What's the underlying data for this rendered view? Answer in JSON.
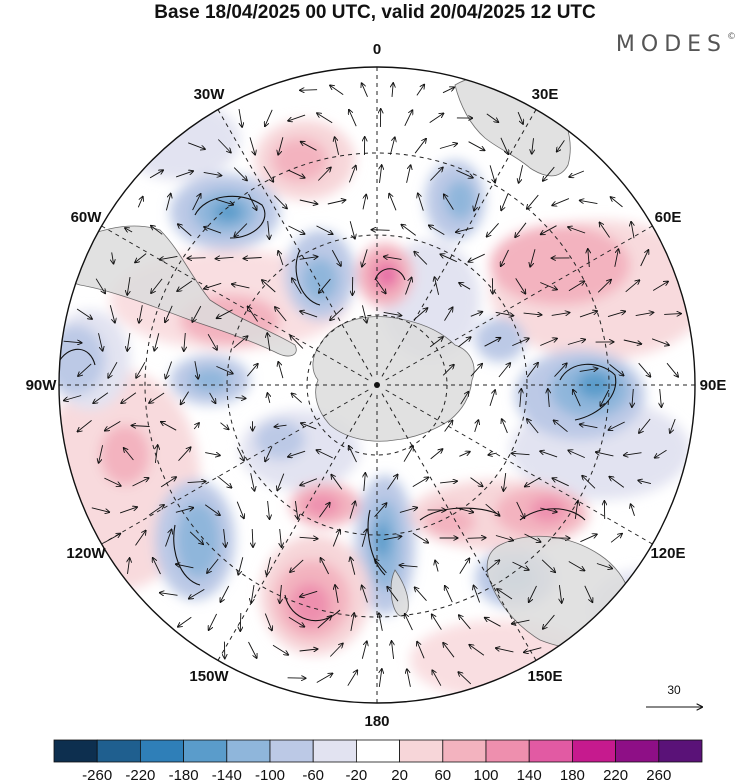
{
  "title": "Base 18/04/2025 00 UTC, valid 20/04/2025 12 UTC",
  "brand": "MODES",
  "brand_mark": "©",
  "meridian_labels": [
    {
      "text": "0",
      "lon": 0
    },
    {
      "text": "30E",
      "lon": 30
    },
    {
      "text": "60E",
      "lon": 60
    },
    {
      "text": "90E",
      "lon": 90
    },
    {
      "text": "120E",
      "lon": 120
    },
    {
      "text": "150E",
      "lon": 150
    },
    {
      "text": "180",
      "lon": 180
    },
    {
      "text": "150W",
      "lon": -150
    },
    {
      "text": "120W",
      "lon": -120
    },
    {
      "text": "90W",
      "lon": -90
    },
    {
      "text": "60W",
      "lon": -60
    },
    {
      "text": "30W",
      "lon": -30
    }
  ],
  "reference_vector": "30",
  "colorbar": {
    "ticks": [
      "-260",
      "-220",
      "-180",
      "-140",
      "-100",
      "-60",
      "-20",
      "20",
      "60",
      "100",
      "140",
      "180",
      "220",
      "260"
    ],
    "colors": [
      "#0d2f4f",
      "#1f5f8f",
      "#2f7fb8",
      "#5a9ccb",
      "#8fb6db",
      "#bcc9e6",
      "#e2e3f1",
      "#ffffff",
      "#f7d6d9",
      "#f3b3bf",
      "#ee8fae",
      "#e25aa3",
      "#c61a8e",
      "#8e0f86",
      "#5a1278"
    ]
  },
  "map": {
    "projection": "south-polar-stereographic",
    "background_color": "#ffffff",
    "land_color": "#dcdcdc"
  }
}
